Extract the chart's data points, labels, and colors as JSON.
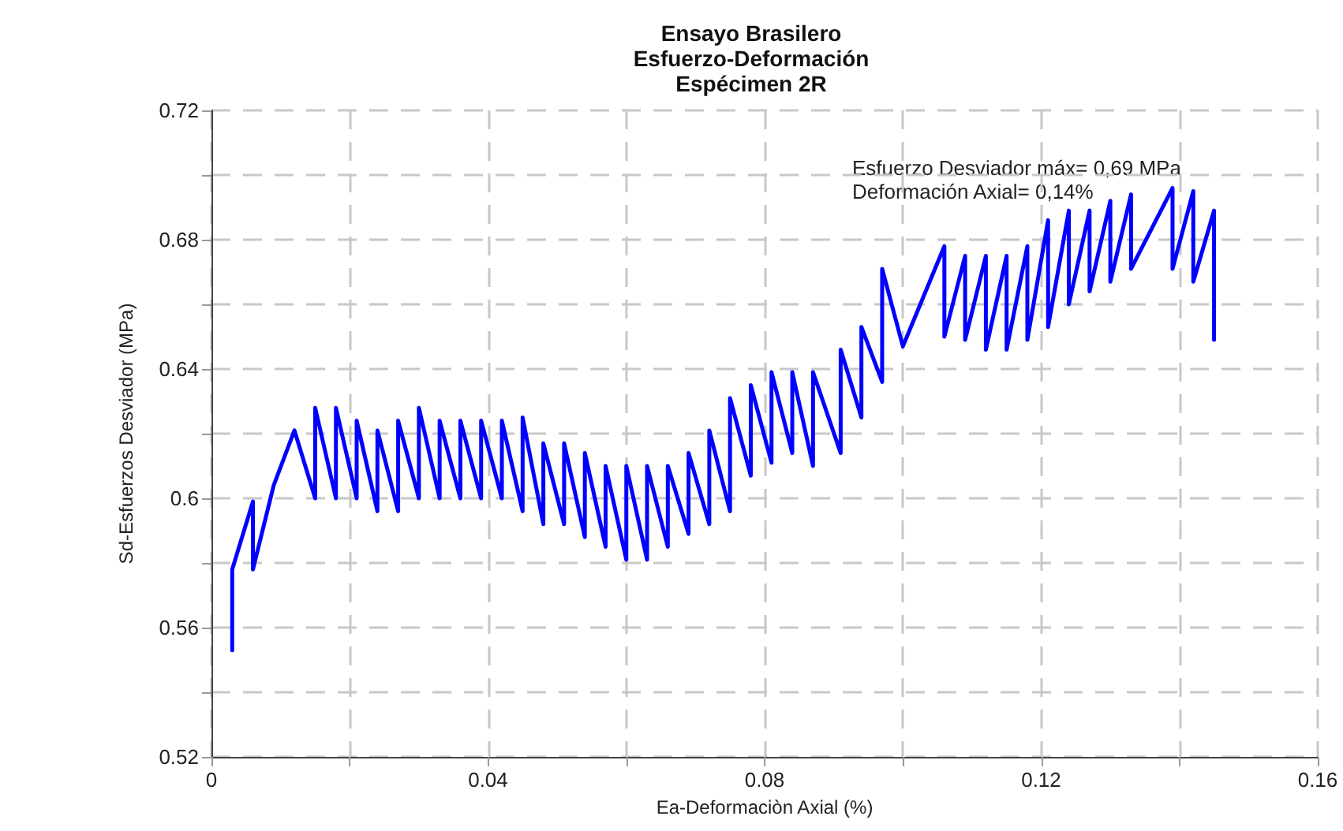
{
  "chart_data": {
    "type": "line",
    "title": "Ensayo Brasilero\nEsfuerzo-Deformación\nEspécimen 2R",
    "xlabel": "Ea-Deformaciòn Axial (%)",
    "ylabel": "Sd-Esfuerzos Desviador (MPa)",
    "annotations": [
      "Esfuerzo Desviador máx= 0,69 MPa",
      "Deformación Axial= 0,14%"
    ],
    "series": [
      {
        "color": "#0000ff",
        "x": [
          0.003,
          0.003,
          0.006,
          0.006,
          0.009,
          0.012,
          0.015,
          0.015,
          0.018,
          0.018,
          0.021,
          0.021,
          0.024,
          0.024,
          0.027,
          0.027,
          0.03,
          0.03,
          0.033,
          0.033,
          0.036,
          0.036,
          0.039,
          0.039,
          0.042,
          0.042,
          0.045,
          0.045,
          0.048,
          0.048,
          0.051,
          0.051,
          0.054,
          0.054,
          0.057,
          0.057,
          0.06,
          0.06,
          0.063,
          0.063,
          0.066,
          0.066,
          0.069,
          0.069,
          0.072,
          0.072,
          0.075,
          0.075,
          0.078,
          0.078,
          0.081,
          0.081,
          0.084,
          0.084,
          0.087,
          0.087,
          0.091,
          0.091,
          0.094,
          0.094,
          0.097,
          0.097,
          0.1,
          0.106,
          0.106,
          0.109,
          0.109,
          0.112,
          0.112,
          0.115,
          0.115,
          0.118,
          0.118,
          0.121,
          0.121,
          0.124,
          0.124,
          0.127,
          0.127,
          0.13,
          0.13,
          0.133,
          0.133,
          0.139,
          0.139,
          0.142,
          0.142,
          0.145,
          0.145
        ],
        "values": [
          0.553,
          0.578,
          0.599,
          0.578,
          0.604,
          0.621,
          0.6,
          0.628,
          0.6,
          0.628,
          0.6,
          0.624,
          0.596,
          0.621,
          0.596,
          0.624,
          0.6,
          0.628,
          0.6,
          0.624,
          0.6,
          0.624,
          0.6,
          0.624,
          0.6,
          0.624,
          0.596,
          0.625,
          0.592,
          0.617,
          0.592,
          0.617,
          0.588,
          0.614,
          0.585,
          0.61,
          0.581,
          0.61,
          0.581,
          0.61,
          0.585,
          0.61,
          0.589,
          0.614,
          0.592,
          0.621,
          0.596,
          0.631,
          0.607,
          0.635,
          0.611,
          0.639,
          0.614,
          0.639,
          0.61,
          0.639,
          0.614,
          0.646,
          0.625,
          0.653,
          0.636,
          0.671,
          0.647,
          0.678,
          0.65,
          0.675,
          0.649,
          0.675,
          0.646,
          0.675,
          0.646,
          0.678,
          0.649,
          0.686,
          0.653,
          0.689,
          0.66,
          0.689,
          0.664,
          0.692,
          0.667,
          0.694,
          0.671,
          0.696,
          0.671,
          0.695,
          0.667,
          0.689,
          0.649
        ]
      }
    ],
    "xlim": [
      0,
      0.16
    ],
    "xticks": [
      0,
      {
        "value": 0.02,
        "label": null
      },
      0.04,
      {
        "value": 0.06,
        "label": null
      },
      0.08,
      {
        "value": 0.1,
        "label": null
      },
      0.12,
      {
        "value": 0.14,
        "label": null
      },
      0.16
    ],
    "ylim": [
      0.52,
      0.72
    ],
    "yticks": [
      0.52,
      {
        "value": 0.54,
        "label": null
      },
      0.56,
      {
        "value": 0.58,
        "label": null
      },
      0.6,
      {
        "value": 0.62,
        "label": null
      },
      0.64,
      {
        "value": 0.66,
        "label": null
      },
      0.68,
      {
        "value": 0.7,
        "label": null
      },
      0.72
    ],
    "grid": true,
    "marker": "none",
    "line_style": "solid"
  }
}
